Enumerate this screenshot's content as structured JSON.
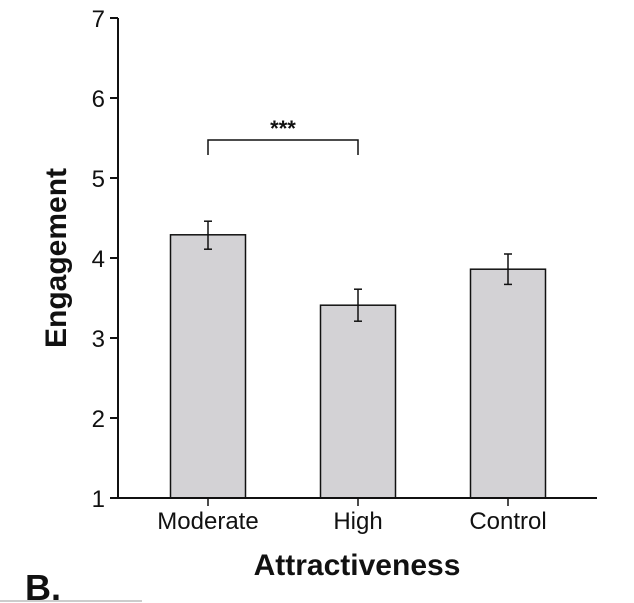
{
  "chart_data": {
    "type": "bar",
    "title": "",
    "xlabel": "Attractiveness",
    "ylabel": "Engagement",
    "categories": [
      "Moderate",
      "High",
      "Control"
    ],
    "values": [
      4.29,
      3.41,
      3.86
    ],
    "error_bars": [
      {
        "lower": 4.11,
        "upper": 4.46
      },
      {
        "lower": 3.21,
        "upper": 3.61
      },
      {
        "lower": 3.67,
        "upper": 4.05
      }
    ],
    "ylim": [
      1,
      7
    ],
    "yticks": [
      "1",
      "2",
      "3",
      "4",
      "5",
      "6",
      "7"
    ],
    "grid": false,
    "legend": "none",
    "bar_color": "#d3d2d5",
    "annotations": [
      {
        "type": "significance-bracket",
        "from": "Moderate",
        "to": "High",
        "text": "***",
        "level": 5.5
      }
    ],
    "panel_label": "B."
  }
}
